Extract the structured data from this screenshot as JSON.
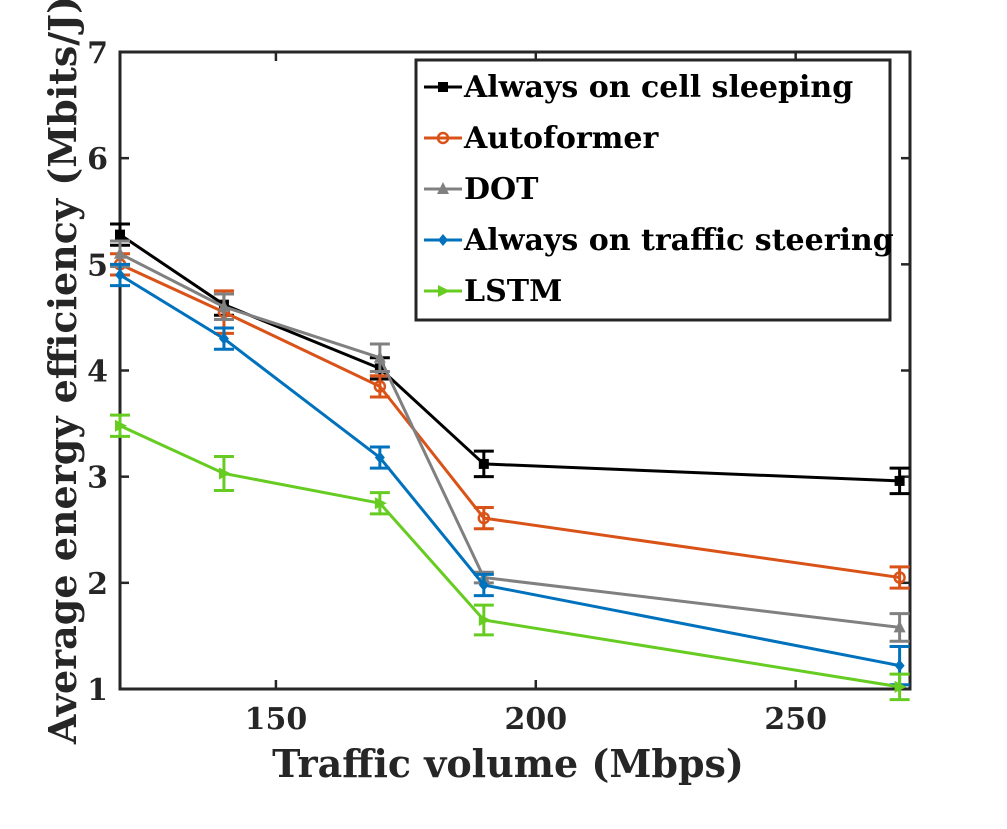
{
  "chart_data": {
    "type": "line",
    "title": "",
    "xlabel": "Traffic volume (Mbps)",
    "ylabel": "Average energy efficiency (Mbits/J)",
    "xlim": [
      120,
      272
    ],
    "ylim": [
      1,
      7
    ],
    "xticks": [
      150,
      200,
      250
    ],
    "yticks": [
      1,
      2,
      3,
      4,
      5,
      6,
      7
    ],
    "x": [
      120,
      140,
      170,
      190,
      270
    ],
    "legend_position": "top-right",
    "grid": false,
    "series": [
      {
        "name": "Always on cell sleeping",
        "color": "#000000",
        "marker": "square",
        "values": [
          5.28,
          4.62,
          4.02,
          3.12,
          2.96
        ],
        "errors": [
          0.1,
          0.1,
          0.1,
          0.12,
          0.12
        ]
      },
      {
        "name": "Autoformer",
        "color": "#D95319",
        "marker": "circle",
        "values": [
          5.0,
          4.55,
          3.85,
          2.61,
          2.05
        ],
        "errors": [
          0.1,
          0.2,
          0.1,
          0.1,
          0.1
        ]
      },
      {
        "name": "DOT",
        "color": "#808080",
        "marker": "triangle-up",
        "values": [
          5.1,
          4.6,
          4.12,
          2.05,
          1.58
        ],
        "errors": [
          0.12,
          0.12,
          0.13,
          0.05,
          0.13
        ]
      },
      {
        "name": "Always on traffic steering",
        "color": "#0072BD",
        "marker": "diamond",
        "values": [
          4.9,
          4.3,
          3.18,
          1.98,
          1.22
        ],
        "errors": [
          0.1,
          0.1,
          0.1,
          0.1,
          0.18
        ]
      },
      {
        "name": "LSTM",
        "color": "#66CC22",
        "marker": "triangle-right",
        "values": [
          3.48,
          3.03,
          2.75,
          1.65,
          1.02
        ],
        "errors": [
          0.1,
          0.16,
          0.1,
          0.14,
          0.12
        ]
      }
    ]
  }
}
